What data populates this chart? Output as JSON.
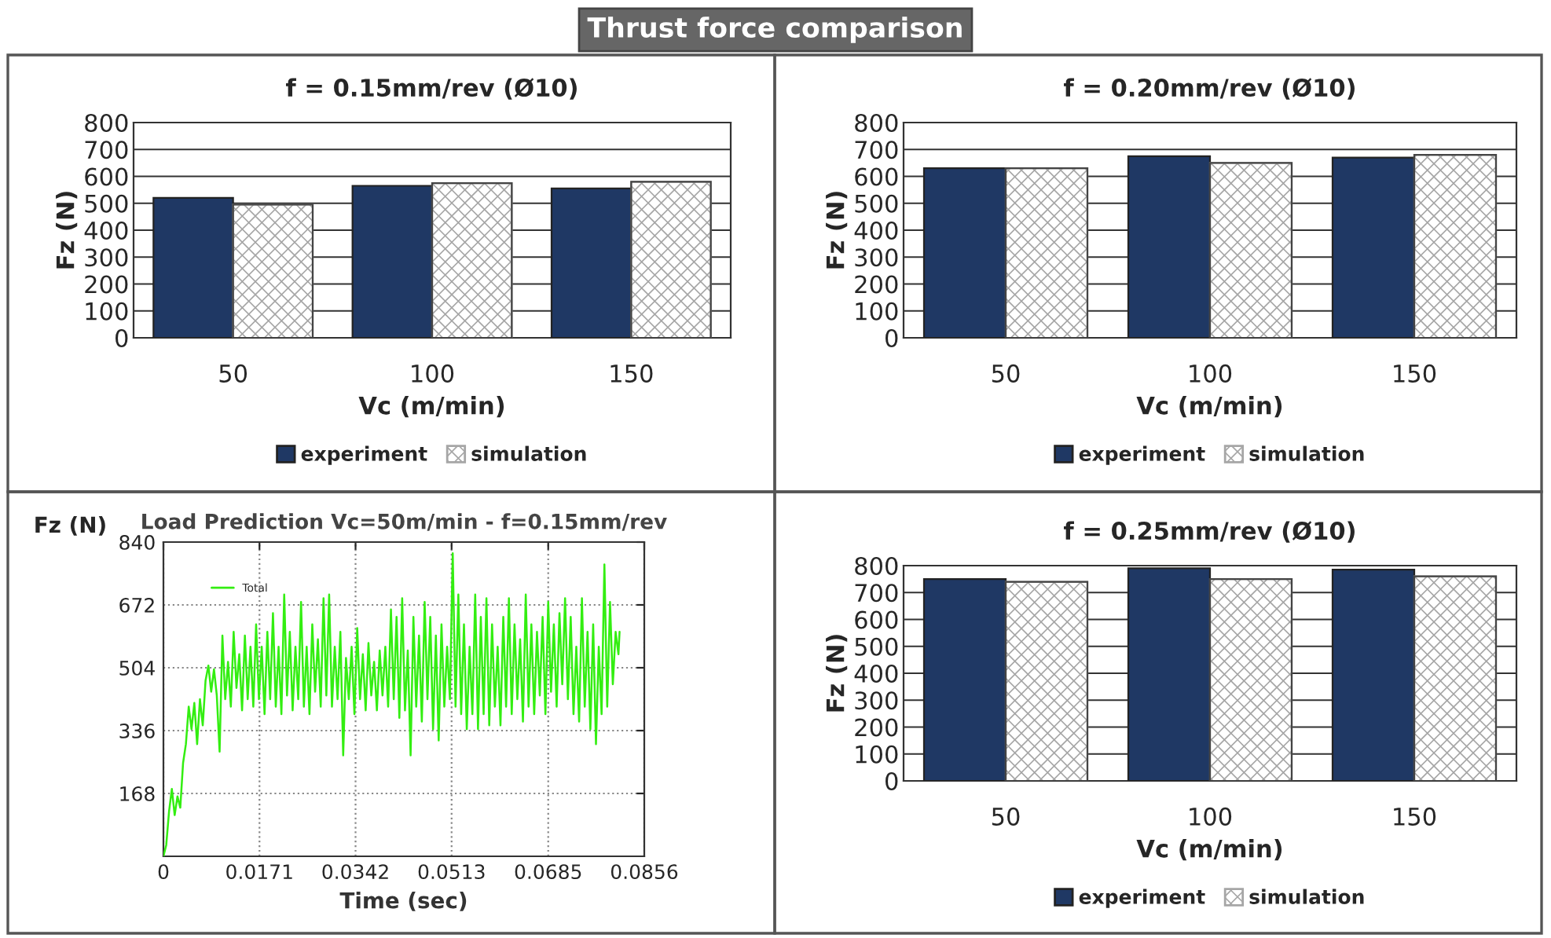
{
  "chart_data": [
    {
      "type": "bar",
      "title": "f = 0.15mm/rev (Ø10)",
      "annotations": [
        "Thrust force comparison"
      ],
      "xlabel": "Vc (m/min)",
      "ylabel": "Fz (N)",
      "categories": [
        "50",
        "100",
        "150"
      ],
      "series": [
        {
          "name": "experiment",
          "color": "#1f3864",
          "values": [
            520,
            565,
            555
          ]
        },
        {
          "name": "simulation",
          "color": "#a6a6a6",
          "values": [
            495,
            575,
            580
          ]
        }
      ],
      "ylim": [
        0,
        800
      ],
      "yticks": [
        0,
        100,
        200,
        300,
        400,
        500,
        600,
        700,
        800
      ],
      "grid": "y",
      "legend": "bottom"
    },
    {
      "type": "bar",
      "title": "f = 0.20mm/rev (Ø10)",
      "xlabel": "Vc (m/min)",
      "ylabel": "Fz (N)",
      "categories": [
        "50",
        "100",
        "150"
      ],
      "series": [
        {
          "name": "experiment",
          "color": "#1f3864",
          "values": [
            630,
            675,
            670
          ]
        },
        {
          "name": "simulation",
          "color": "#a6a6a6",
          "values": [
            630,
            650,
            680
          ]
        }
      ],
      "ylim": [
        0,
        800
      ],
      "yticks": [
        0,
        100,
        200,
        300,
        400,
        500,
        600,
        700,
        800
      ],
      "grid": "y",
      "legend": "bottom"
    },
    {
      "type": "line",
      "title": "Load Prediction Vc=50m/min - f=0.15mm/rev",
      "xlabel": "Time (sec)",
      "ylabel": "Fz (N)",
      "x": [
        0,
        0.0005,
        0.001,
        0.0015,
        0.002,
        0.0025,
        0.003,
        0.0035,
        0.004,
        0.0045,
        0.005,
        0.0055,
        0.006,
        0.0065,
        0.007,
        0.0075,
        0.008,
        0.0085,
        0.009,
        0.0095,
        0.01,
        0.0105,
        0.011,
        0.0115,
        0.012,
        0.0125,
        0.013,
        0.0135,
        0.014,
        0.0145,
        0.015,
        0.0155,
        0.016,
        0.0165,
        0.017,
        0.0175,
        0.018,
        0.0185,
        0.019,
        0.0195,
        0.02,
        0.0205,
        0.021,
        0.0215,
        0.022,
        0.0225,
        0.023,
        0.0235,
        0.024,
        0.0245,
        0.025,
        0.0255,
        0.026,
        0.0265,
        0.027,
        0.0275,
        0.028,
        0.0285,
        0.029,
        0.0295,
        0.03,
        0.0305,
        0.031,
        0.0315,
        0.032,
        0.0325,
        0.033,
        0.0335,
        0.034,
        0.0345,
        0.035,
        0.0355,
        0.036,
        0.0365,
        0.037,
        0.0375,
        0.038,
        0.0385,
        0.039,
        0.0395,
        0.04,
        0.0405,
        0.041,
        0.0415,
        0.042,
        0.0425,
        0.043,
        0.0435,
        0.044,
        0.0445,
        0.045,
        0.0455,
        0.046,
        0.0465,
        0.047,
        0.0475,
        0.048,
        0.0485,
        0.049,
        0.0495,
        0.05,
        0.0505,
        0.051,
        0.0515,
        0.052,
        0.0525,
        0.053,
        0.0535,
        0.054,
        0.0545,
        0.055,
        0.0555,
        0.056,
        0.0565,
        0.057,
        0.0575,
        0.058,
        0.0585,
        0.059,
        0.0595,
        0.06,
        0.0605,
        0.061,
        0.0615,
        0.062,
        0.0625,
        0.063,
        0.0635,
        0.064,
        0.0645,
        0.065,
        0.0655,
        0.066,
        0.0665,
        0.067,
        0.0675,
        0.068,
        0.0685,
        0.069,
        0.0695,
        0.07,
        0.0705,
        0.071,
        0.0715,
        0.072,
        0.0725,
        0.073,
        0.0735,
        0.074,
        0.0745,
        0.075,
        0.0755,
        0.076,
        0.0765,
        0.077,
        0.0775,
        0.078,
        0.0785,
        0.079,
        0.0795,
        0.08,
        0.0805,
        0.081,
        0.0812
      ],
      "series": [
        {
          "name": "Total",
          "color": "#33ee11",
          "values": [
            0,
            30,
            120,
            180,
            110,
            160,
            130,
            250,
            300,
            400,
            340,
            410,
            300,
            420,
            350,
            470,
            510,
            440,
            500,
            430,
            280,
            590,
            420,
            520,
            400,
            600,
            450,
            540,
            390,
            590,
            420,
            560,
            400,
            620,
            420,
            560,
            380,
            600,
            420,
            650,
            400,
            560,
            380,
            700,
            430,
            600,
            390,
            560,
            420,
            680,
            400,
            560,
            380,
            620,
            440,
            580,
            400,
            690,
            430,
            700,
            400,
            560,
            420,
            600,
            270,
            530,
            420,
            560,
            380,
            610,
            420,
            540,
            390,
            570,
            430,
            520,
            390,
            550,
            430,
            560,
            400,
            660,
            420,
            640,
            370,
            690,
            390,
            550,
            270,
            640,
            400,
            590,
            360,
            680,
            420,
            640,
            340,
            590,
            310,
            620,
            400,
            560,
            420,
            810,
            400,
            700,
            380,
            620,
            340,
            560,
            380,
            700,
            340,
            640,
            380,
            690,
            350,
            620,
            400,
            560,
            350,
            640,
            400,
            690,
            380,
            620,
            420,
            580,
            360,
            700,
            400,
            620,
            380,
            600,
            430,
            640,
            380,
            680,
            440,
            620,
            400,
            650,
            460,
            690,
            420,
            640,
            380,
            560,
            360,
            690,
            400,
            600,
            340,
            620,
            300,
            560,
            380,
            780,
            400,
            680,
            460,
            600,
            540,
            600
          ]
        }
      ],
      "xlim": [
        0,
        0.0856
      ],
      "xticks": [
        0,
        0.0171,
        0.0342,
        0.0513,
        0.0685,
        0.0856
      ],
      "ylim": [
        0,
        840
      ],
      "yticks": [
        168,
        336,
        504,
        672,
        840
      ],
      "grid": true,
      "legend": "top left",
      "line_style": "solid",
      "marker": "none"
    },
    {
      "type": "bar",
      "title": "f = 0.25mm/rev (Ø10)",
      "xlabel": "Vc (m/min)",
      "ylabel": "Fz (N)",
      "categories": [
        "50",
        "100",
        "150"
      ],
      "series": [
        {
          "name": "experiment",
          "color": "#1f3864",
          "values": [
            750,
            790,
            785
          ]
        },
        {
          "name": "simulation",
          "color": "#a6a6a6",
          "values": [
            740,
            750,
            760
          ]
        }
      ],
      "ylim": [
        0,
        800
      ],
      "yticks": [
        0,
        100,
        200,
        300,
        400,
        500,
        600,
        700,
        800
      ],
      "grid": "y",
      "legend": "bottom"
    }
  ]
}
